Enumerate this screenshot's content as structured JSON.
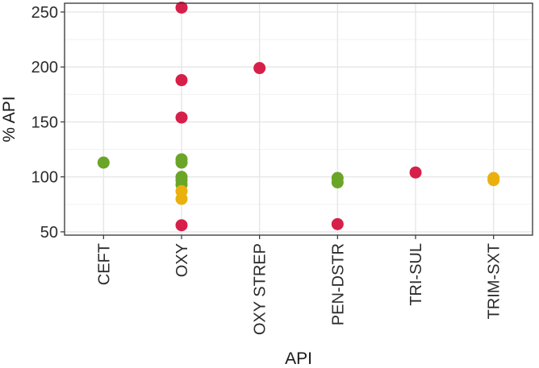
{
  "chart_data": {
    "type": "scatter",
    "title": "",
    "xlabel": "API",
    "ylabel": "% API",
    "categories": [
      "CEFT",
      "OXY",
      "OXY STREP",
      "PEN-DSTR",
      "TRI-SUL",
      "TRIM-SXT"
    ],
    "ylim": [
      47,
      258
    ],
    "yticks": [
      50,
      100,
      150,
      200,
      250
    ],
    "grid": true,
    "legend": "none",
    "colors": {
      "red": "#d6204a",
      "green": "#6aa527",
      "orange": "#eab00e"
    },
    "points": [
      {
        "category": "CEFT",
        "y": 113,
        "color": "green"
      },
      {
        "category": "OXY",
        "y": 254,
        "color": "red"
      },
      {
        "category": "OXY",
        "y": 188,
        "color": "red"
      },
      {
        "category": "OXY",
        "y": 154,
        "color": "red"
      },
      {
        "category": "OXY",
        "y": 116,
        "color": "green"
      },
      {
        "category": "OXY",
        "y": 113,
        "color": "green"
      },
      {
        "category": "OXY",
        "y": 100,
        "color": "green"
      },
      {
        "category": "OXY",
        "y": 97,
        "color": "green"
      },
      {
        "category": "OXY",
        "y": 93,
        "color": "green"
      },
      {
        "category": "OXY",
        "y": 87,
        "color": "orange"
      },
      {
        "category": "OXY",
        "y": 80,
        "color": "orange"
      },
      {
        "category": "OXY",
        "y": 56,
        "color": "red"
      },
      {
        "category": "OXY STREP",
        "y": 199,
        "color": "red"
      },
      {
        "category": "PEN-DSTR",
        "y": 99,
        "color": "green"
      },
      {
        "category": "PEN-DSTR",
        "y": 95,
        "color": "green"
      },
      {
        "category": "PEN-DSTR",
        "y": 57,
        "color": "red"
      },
      {
        "category": "TRI-SUL",
        "y": 104,
        "color": "red"
      },
      {
        "category": "TRIM-SXT",
        "y": 99,
        "color": "orange"
      },
      {
        "category": "TRIM-SXT",
        "y": 97,
        "color": "orange"
      }
    ]
  }
}
